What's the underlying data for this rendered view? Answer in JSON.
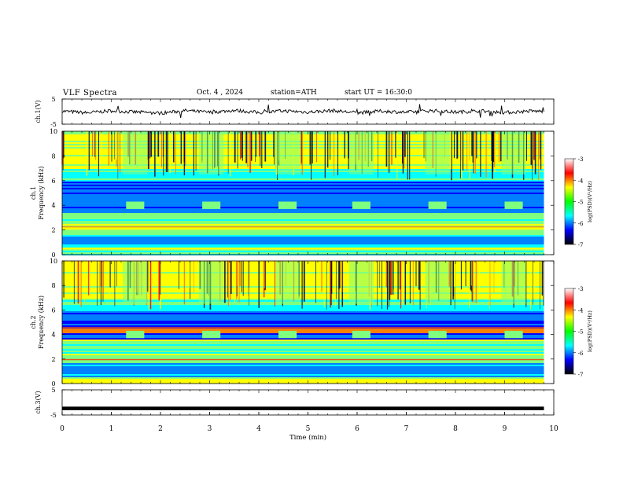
{
  "header": {
    "title": "VLF Spectra",
    "date": "Oct. 4 , 2024",
    "station": "station=ATH",
    "start": "start UT = 16:30:0"
  },
  "chart_data": [
    {
      "id": "ch1-voltage",
      "type": "line",
      "ylabel": "ch.1(V)",
      "ylim": [
        -5,
        5
      ],
      "yticks": [
        "5",
        "-5"
      ],
      "xlim": [
        0,
        10
      ],
      "series": [
        {
          "x": [
            0,
            0.5,
            1,
            1.5,
            2,
            2.5,
            3,
            3.5,
            4,
            4.5,
            5,
            5.5,
            6,
            6.5,
            7,
            7.5,
            8,
            8.5,
            9,
            9.5,
            9.8
          ],
          "values": [
            0.2,
            -0.5,
            0.3,
            -0.2,
            -0.6,
            0.4,
            -0.3,
            0.5,
            -0.4,
            0.3,
            -0.2,
            0.4,
            -0.5,
            0.2,
            -0.3,
            0.4,
            -0.2,
            0.3,
            -0.4,
            0.2,
            0.1
          ]
        }
      ]
    },
    {
      "id": "ch1-spectrogram",
      "type": "heatmap",
      "ylabel": "ch.1\nFrequency (kHz)",
      "ylim": [
        0,
        10
      ],
      "yticks": [
        "0",
        "2",
        "4",
        "6",
        "8",
        "10"
      ],
      "xlim": [
        0,
        10
      ],
      "colorbar": {
        "label": "log(PSD)(V²/Hz)",
        "range": [
          -7,
          -3
        ],
        "ticks": [
          "-3",
          "-4",
          "-5",
          "-6",
          "-7"
        ]
      },
      "bursts_min": [
        1.45,
        3.0,
        4.55,
        6.05,
        7.6,
        9.15
      ]
    },
    {
      "id": "ch2-spectrogram",
      "type": "heatmap",
      "ylabel": "ch.2\nFrequency (kHz)",
      "ylim": [
        0,
        10
      ],
      "yticks": [
        "0",
        "2",
        "4",
        "6",
        "8",
        "10"
      ],
      "xlim": [
        0,
        10
      ],
      "colorbar": {
        "label": "log(PSD)(V²/Hz)",
        "range": [
          -7,
          -3
        ],
        "ticks": [
          "-3",
          "-4",
          "-5",
          "-6",
          "-7"
        ]
      },
      "bursts_min": [
        1.45,
        3.0,
        4.55,
        6.05,
        7.6,
        9.15
      ]
    },
    {
      "id": "ch3-voltage",
      "type": "line",
      "ylabel": "ch.3(V)",
      "ylim": [
        -5,
        5
      ],
      "yticks": [
        "5",
        "-5"
      ],
      "xlim": [
        0,
        10
      ],
      "series": [
        {
          "x": [
            0,
            9.8
          ],
          "values": [
            -2.4,
            -2.4
          ]
        }
      ]
    }
  ],
  "xaxis": {
    "label": "Time (min)",
    "ticks": [
      "0",
      "1",
      "2",
      "3",
      "4",
      "5",
      "6",
      "7",
      "8",
      "9",
      "10"
    ]
  },
  "colors": {
    "jet": [
      "#00007f",
      "#0000ff",
      "#007fff",
      "#00ffff",
      "#7fff7f",
      "#ffff00",
      "#ff7f00",
      "#ff0000",
      "#7f0000"
    ],
    "colorbar": [
      "#000000",
      "#0000ff",
      "#00ffff",
      "#00ff00",
      "#ffff00",
      "#ff0000",
      "#ffffff"
    ]
  }
}
